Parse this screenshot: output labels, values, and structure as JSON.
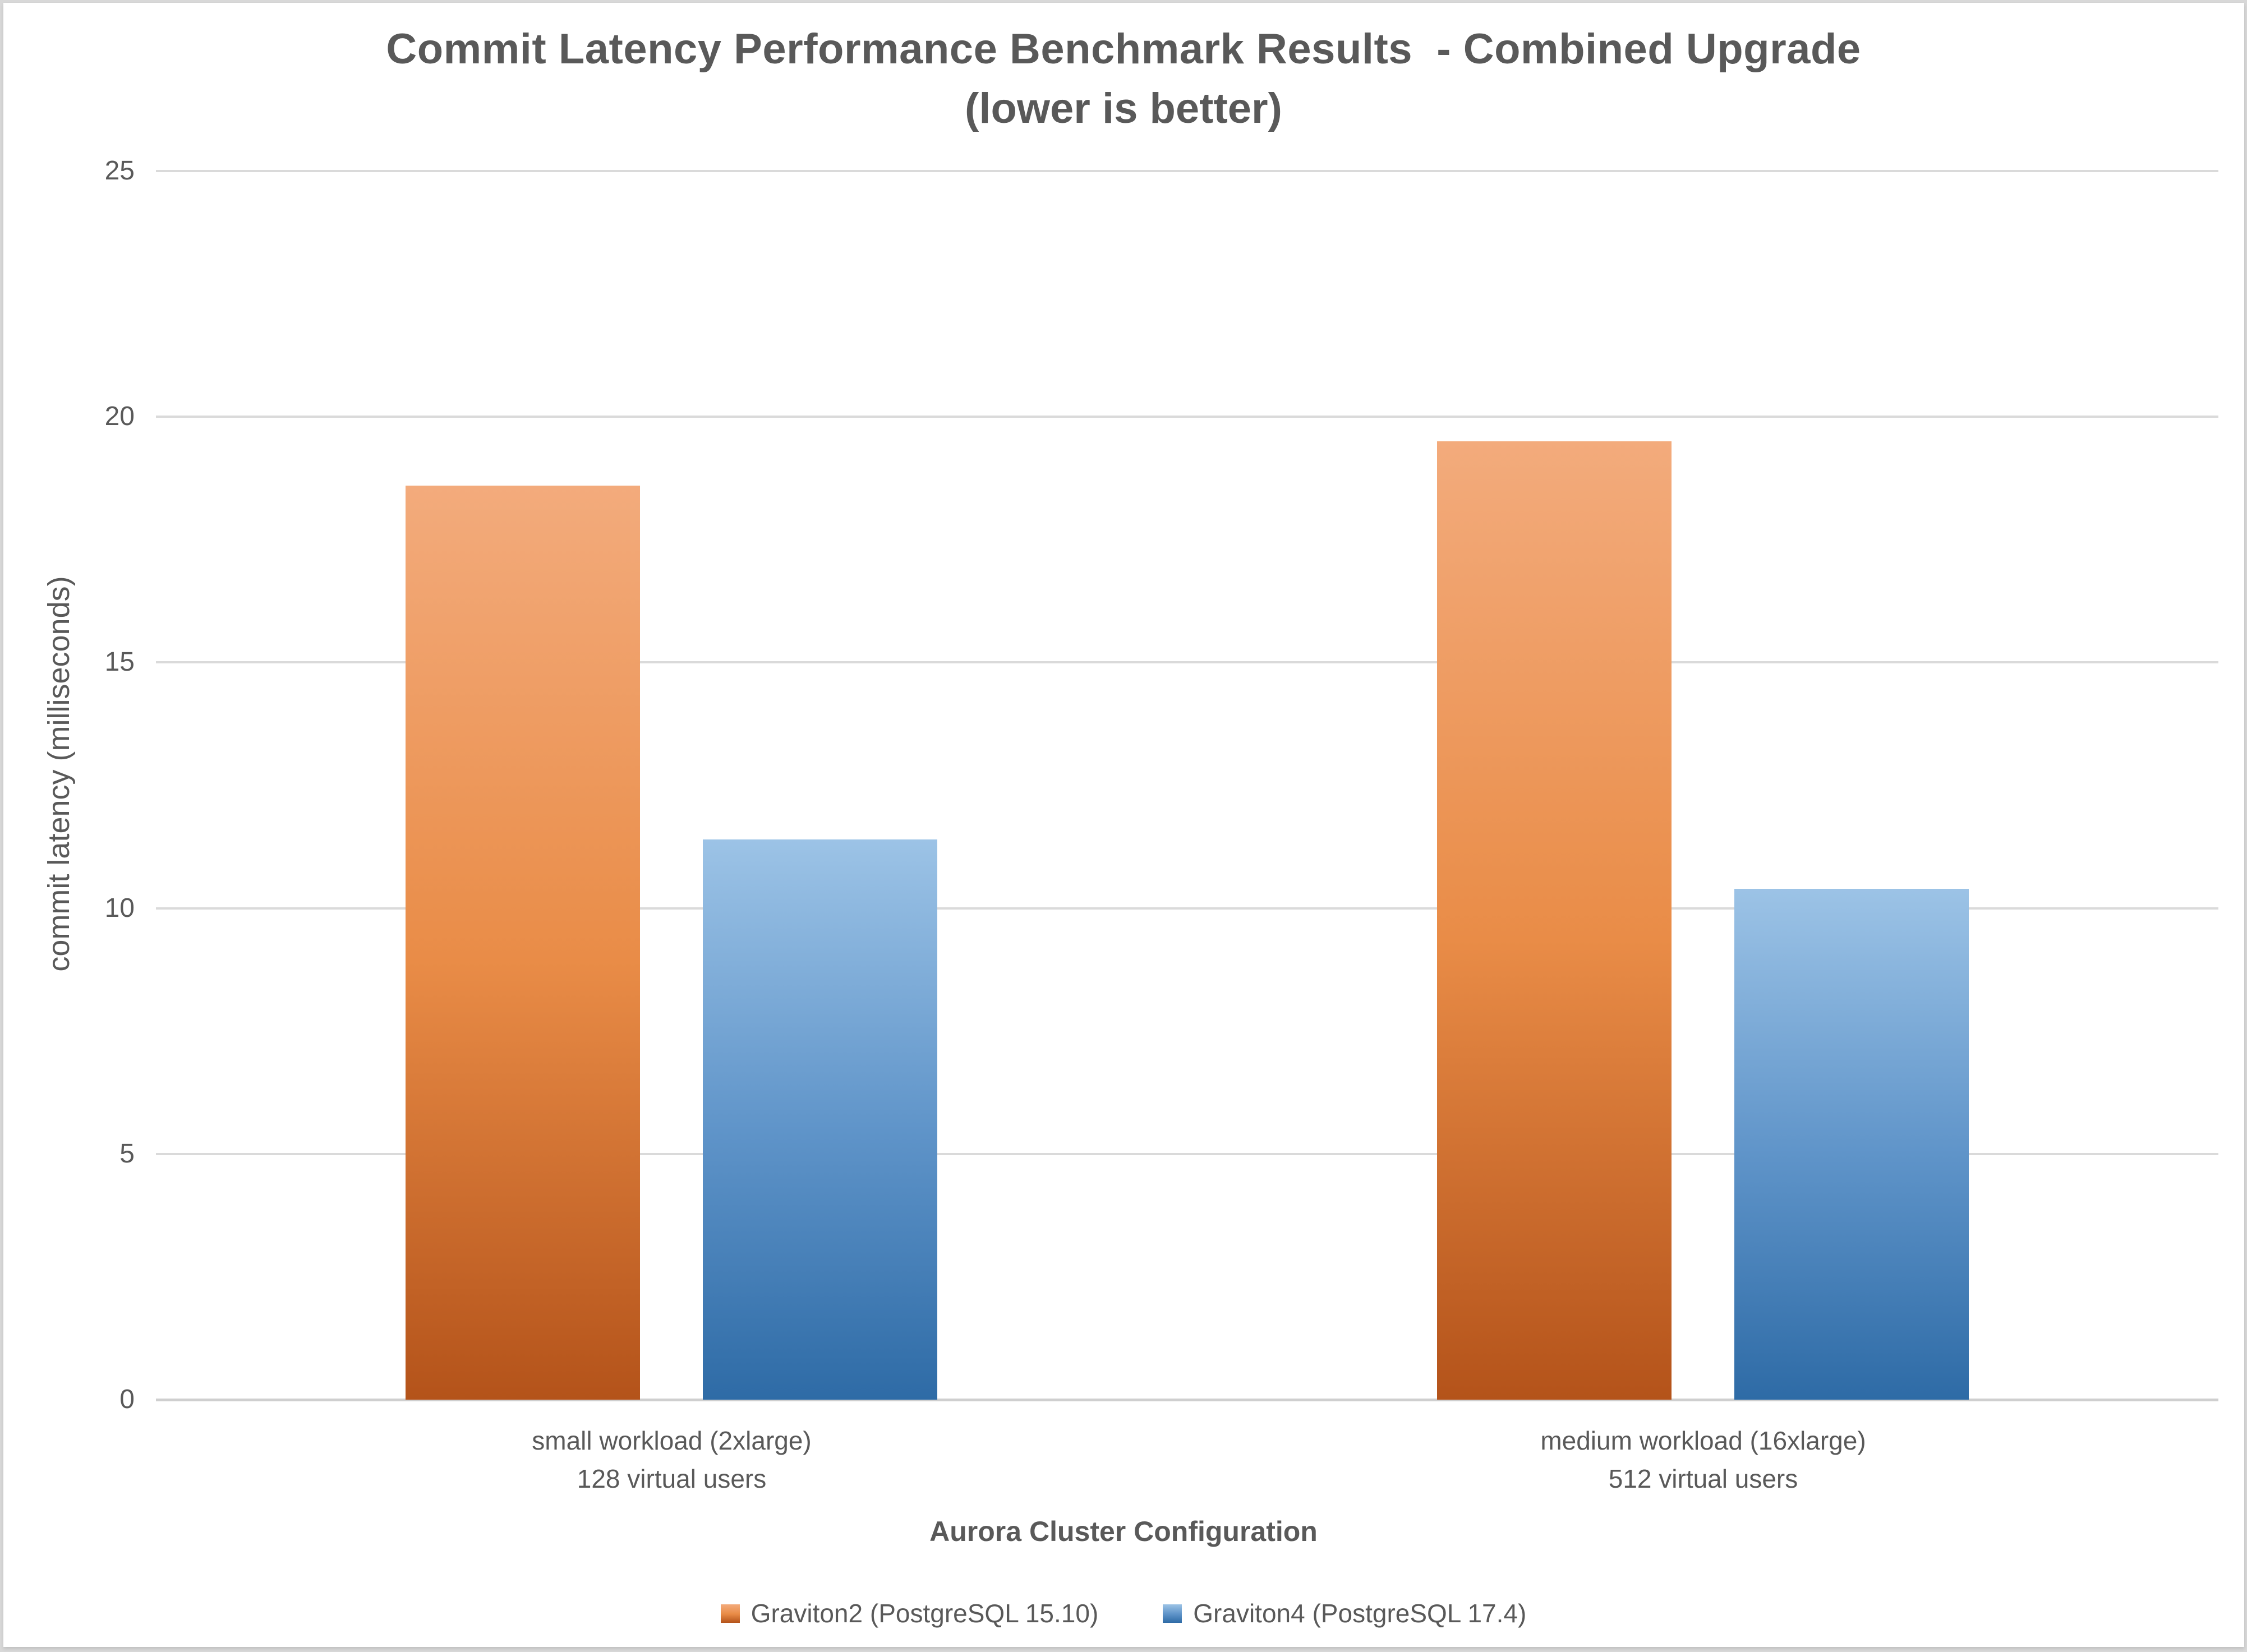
{
  "chart_data": {
    "type": "bar",
    "title": "Commit Latency Performance Benchmark Results  - Combined Upgrade",
    "subtitle": "(lower is better)",
    "xlabel": "Aurora Cluster Configuration",
    "ylabel": "commit latency (milliseconds)",
    "ylim": [
      0,
      25
    ],
    "yticks": [
      0,
      5,
      10,
      15,
      20,
      25
    ],
    "grid": "horizontal",
    "legend_position": "bottom",
    "categories": [
      "small workload (2xlarge)\n128 virtual users",
      "medium workload (16xlarge)\n512 virtual users"
    ],
    "series": [
      {
        "name": "Graviton2 (PostgreSQL 15.10)",
        "values": [
          18.6,
          19.5
        ],
        "color_top": "#f3ab7c",
        "color_mid": "#e98c47",
        "color_bottom": "#b4531a"
      },
      {
        "name": "Graviton4 (PostgreSQL 17.4)",
        "values": [
          11.4,
          10.4
        ],
        "color_top": "#9cc3e6",
        "color_mid": "#5f94c9",
        "color_bottom": "#2e6ba6"
      }
    ]
  },
  "colors": {
    "title_text": "#595959",
    "axis_text": "#595959",
    "gridline": "#dadada",
    "page_background": "#d8d8d8",
    "chart_background": "#ffffff"
  }
}
